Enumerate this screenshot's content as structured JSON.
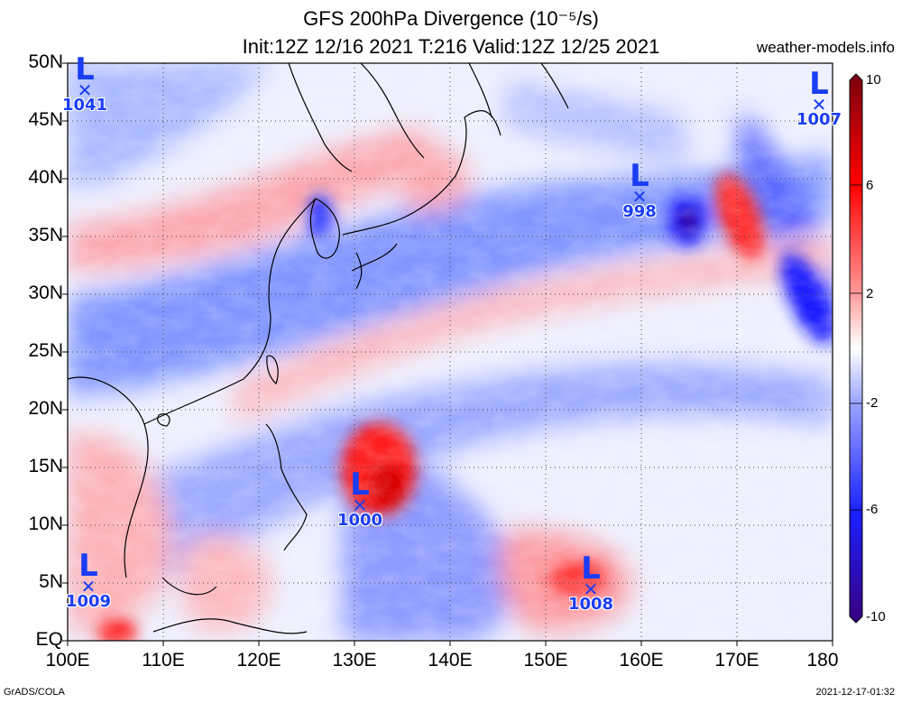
{
  "title_line1": "GFS 200hPa Divergence (10⁻⁵/s)",
  "title_line2": "Init:12Z 12/16 2021 T:216 Valid:12Z 12/25 2021",
  "website": "weather-models.info",
  "footer_left": "GrADS/COLA",
  "footer_right": "2021-12-17-01:32",
  "lat_labels": [
    "50N",
    "45N",
    "40N",
    "35N",
    "30N",
    "25N",
    "20N",
    "15N",
    "10N",
    "5N",
    "EQ"
  ],
  "lon_labels": [
    "100E",
    "110E",
    "120E",
    "130E",
    "140E",
    "150E",
    "160E",
    "170E",
    "180"
  ],
  "colorbar_labels": [
    "10",
    "6",
    "2",
    "-2",
    "-6",
    "-10"
  ],
  "colors": {
    "max": "#8b0000",
    "pos": "#ff2020",
    "neg": "#1a3df5",
    "min": "#2a0060",
    "low_marker": "#1a3df5"
  },
  "lows": [
    {
      "pressure": "1041",
      "lon": 101.5,
      "lat": 47.5
    },
    {
      "pressure": "1007",
      "lon": 178.5,
      "lat": 46.0
    },
    {
      "pressure": "998",
      "lon": 159.7,
      "lat": 38.0
    },
    {
      "pressure": "1000",
      "lon": 130.5,
      "lat": 11.2
    },
    {
      "pressure": "1009",
      "lon": 101.8,
      "lat": 4.3
    },
    {
      "pressure": "1008",
      "lon": 154.7,
      "lat": 4.2
    }
  ]
}
